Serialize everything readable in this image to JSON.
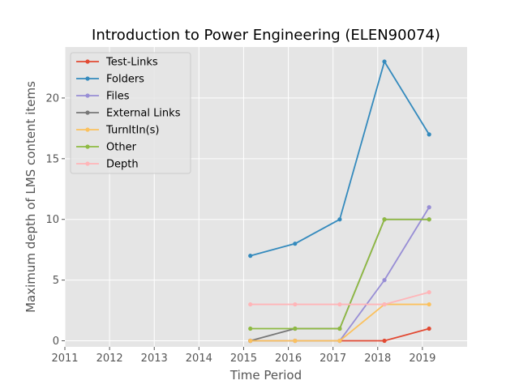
{
  "chart_data": {
    "type": "line",
    "title": "Introduction to Power Engineering (ELEN90074)",
    "xlabel": "Time Period",
    "ylabel": "Maximum depth of LMS content items",
    "xlim": [
      2011,
      2020
    ],
    "ylim": [
      -0.5,
      24.2
    ],
    "x_ticks": [
      2011,
      2012,
      2013,
      2014,
      2015,
      2016,
      2017,
      2018,
      2019
    ],
    "y_ticks": [
      0,
      5,
      10,
      15,
      20
    ],
    "x": [
      2015.15,
      2016.15,
      2017.15,
      2018.15,
      2019.15
    ],
    "grid": true,
    "legend_position": "top-left",
    "series": [
      {
        "name": "Test-Links",
        "color": "#E24A33",
        "values": [
          0,
          0,
          0,
          0,
          1
        ]
      },
      {
        "name": "Folders",
        "color": "#348ABD",
        "values": [
          7,
          8,
          10,
          23,
          17
        ]
      },
      {
        "name": "Files",
        "color": "#988ED5",
        "values": [
          0,
          0,
          0,
          5,
          11
        ]
      },
      {
        "name": "External Links",
        "color": "#777777",
        "values": [
          0,
          1,
          1,
          10,
          10
        ]
      },
      {
        "name": "TurnItIn(s)",
        "color": "#FBC15E",
        "values": [
          0,
          0,
          0,
          3,
          3
        ]
      },
      {
        "name": "Other",
        "color": "#8EBA42",
        "values": [
          1,
          1,
          1,
          10,
          10
        ]
      },
      {
        "name": "Depth",
        "color": "#FFB5B8",
        "values": [
          3,
          3,
          3,
          3,
          4
        ]
      }
    ]
  }
}
